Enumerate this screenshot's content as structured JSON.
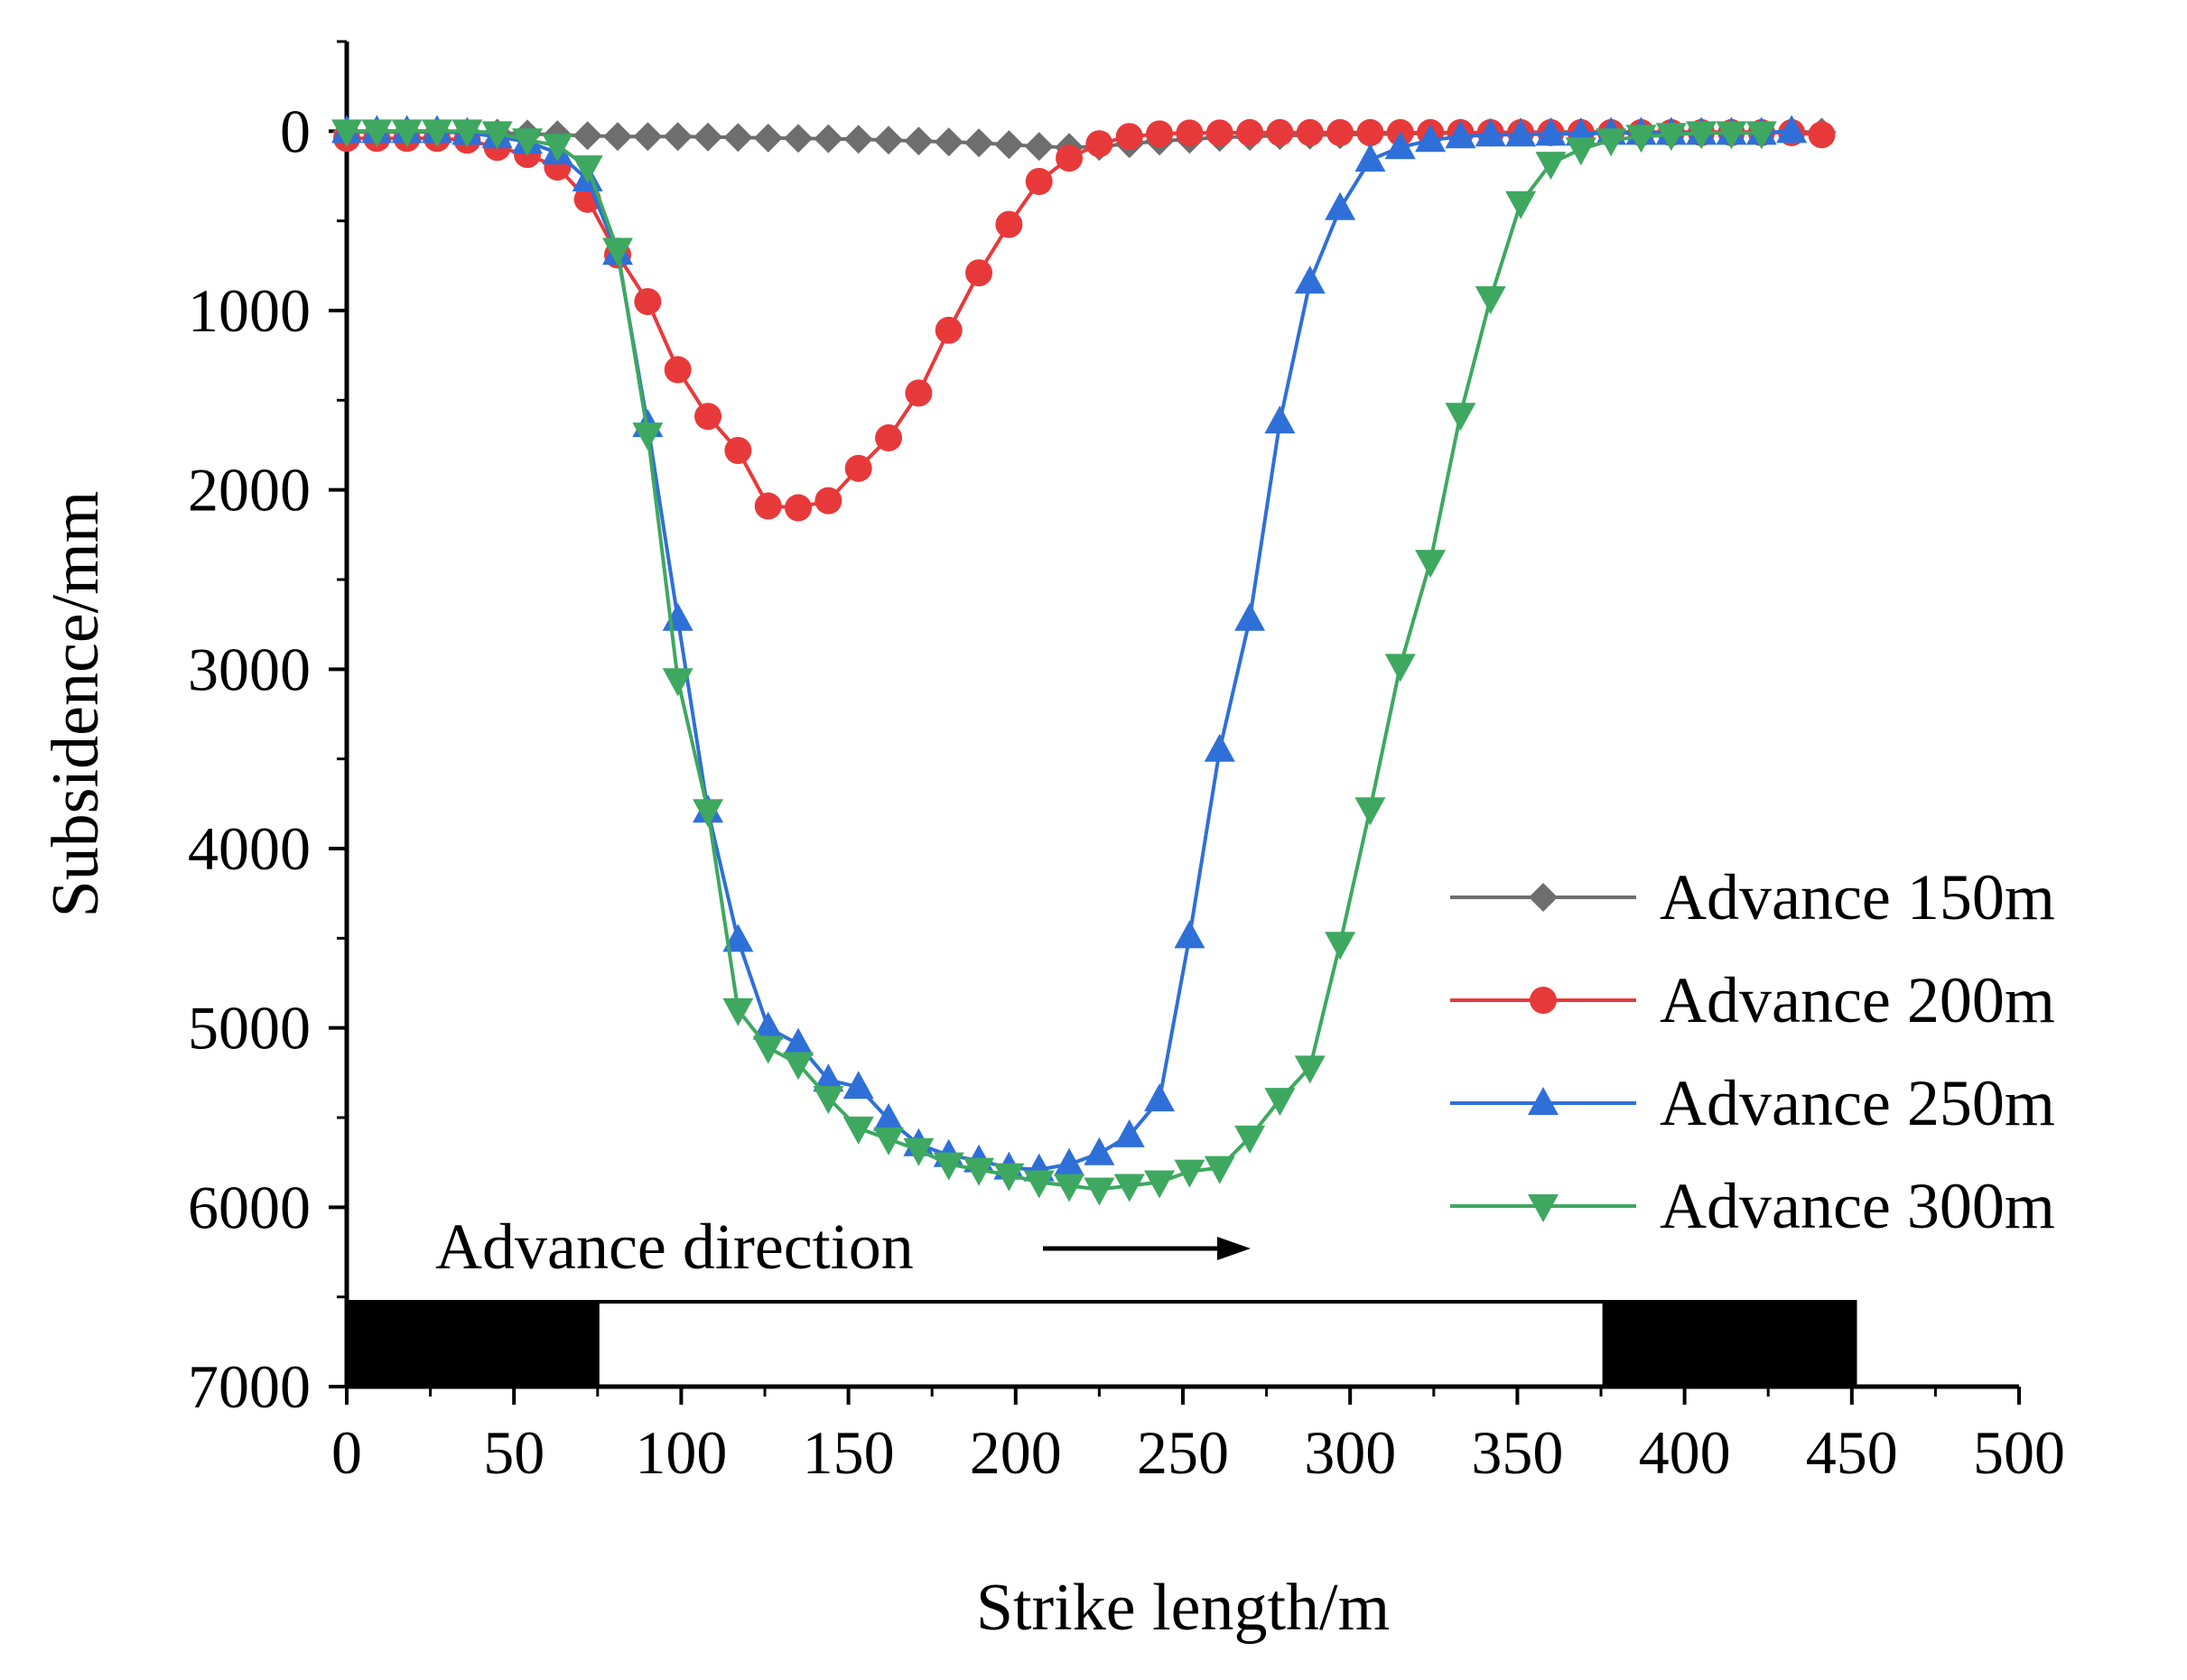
{
  "chart_data": {
    "type": "line",
    "xlabel": "Strike length/m",
    "ylabel": "Subsidence/mm",
    "xlim": [
      0,
      500
    ],
    "ylim": [
      7000,
      -500
    ],
    "y_inverted": true,
    "xticks": [
      "0",
      "50",
      "100",
      "150",
      "200",
      "250",
      "300",
      "350",
      "400",
      "450",
      "500"
    ],
    "yticks": [
      "0",
      "1000",
      "2000",
      "3000",
      "4000",
      "5000",
      "6000",
      "7000"
    ],
    "legend_position": "bottom-right",
    "annotation": {
      "text": "Advance direction",
      "arrow": "right"
    },
    "coal_pillars": [
      {
        "label": "",
        "x_start": 0,
        "x_end": 75,
        "fill": "#000000"
      },
      {
        "label": "",
        "x_start": 75,
        "x_end": 376,
        "fill": "#ffffff"
      },
      {
        "label": "",
        "x_start": 376,
        "x_end": 451,
        "fill": "#000000"
      }
    ],
    "series": [
      {
        "name": "Advance 150m",
        "color": "#6e6e6e",
        "marker": "diamond",
        "x": [
          0,
          9,
          18,
          27,
          36,
          45,
          54,
          63,
          72,
          81,
          90,
          99,
          108,
          117,
          126,
          135,
          144,
          153,
          162,
          171,
          180,
          189,
          198,
          207,
          216,
          225,
          234,
          243,
          252,
          261,
          270,
          279,
          288,
          297,
          306,
          315,
          324,
          333,
          342,
          351,
          360,
          369,
          378,
          387,
          396,
          405,
          414,
          423,
          432,
          441
        ],
        "y": [
          5,
          5,
          5,
          5,
          8,
          10,
          15,
          20,
          25,
          30,
          30,
          30,
          32,
          35,
          38,
          40,
          42,
          45,
          50,
          55,
          60,
          65,
          75,
          85,
          90,
          85,
          70,
          55,
          45,
          35,
          30,
          25,
          22,
          20,
          18,
          15,
          12,
          10,
          8,
          6,
          5,
          5,
          5,
          5,
          5,
          5,
          5,
          5,
          5,
          5
        ]
      },
      {
        "name": "Advance 200m",
        "color": "#e8393a",
        "marker": "circle",
        "x": [
          0,
          9,
          18,
          27,
          36,
          45,
          54,
          63,
          72,
          81,
          90,
          99,
          108,
          117,
          126,
          135,
          144,
          153,
          162,
          171,
          180,
          189,
          198,
          207,
          216,
          225,
          234,
          243,
          252,
          261,
          270,
          279,
          288,
          297,
          306,
          315,
          324,
          333,
          342,
          351,
          360,
          369,
          378,
          387,
          396,
          405,
          414,
          423,
          432,
          441
        ],
        "y": [
          40,
          40,
          40,
          40,
          50,
          90,
          130,
          200,
          380,
          690,
          950,
          1330,
          1590,
          1780,
          2090,
          2100,
          2060,
          1880,
          1710,
          1460,
          1110,
          790,
          520,
          280,
          150,
          70,
          30,
          15,
          10,
          10,
          8,
          8,
          8,
          8,
          8,
          8,
          8,
          8,
          8,
          8,
          8,
          8,
          8,
          8,
          8,
          8,
          8,
          8,
          8,
          20
        ]
      },
      {
        "name": "Advance 250m",
        "color": "#2f6fd8",
        "marker": "triangle-up",
        "x": [
          0,
          9,
          18,
          27,
          36,
          45,
          54,
          63,
          72,
          81,
          90,
          99,
          108,
          117,
          126,
          135,
          144,
          153,
          162,
          171,
          180,
          189,
          198,
          207,
          216,
          225,
          234,
          243,
          252,
          261,
          270,
          279,
          288,
          297,
          306,
          315,
          324,
          333,
          342,
          351,
          360,
          369,
          378,
          387,
          396,
          405,
          414,
          423,
          432
        ],
        "y": [
          0,
          0,
          0,
          0,
          10,
          30,
          60,
          120,
          270,
          680,
          1640,
          2720,
          3790,
          4510,
          5000,
          5090,
          5290,
          5330,
          5510,
          5650,
          5710,
          5740,
          5780,
          5790,
          5760,
          5700,
          5600,
          5400,
          4490,
          3450,
          2720,
          1620,
          840,
          430,
          160,
          90,
          50,
          30,
          20,
          20,
          15,
          15,
          10,
          10,
          10,
          10,
          10,
          10,
          0
        ]
      },
      {
        "name": "Advance 300m",
        "color": "#3ea860",
        "marker": "triangle-down",
        "x": [
          0,
          9,
          18,
          27,
          36,
          45,
          54,
          63,
          72,
          81,
          90,
          99,
          108,
          117,
          126,
          135,
          144,
          153,
          162,
          171,
          180,
          189,
          198,
          207,
          216,
          225,
          234,
          243,
          252,
          261,
          270,
          279,
          288,
          297,
          306,
          315,
          324,
          333,
          342,
          351,
          360,
          369,
          378,
          387,
          396,
          405,
          414,
          423
        ],
        "y": [
          0,
          0,
          0,
          0,
          0,
          10,
          50,
          80,
          200,
          660,
          1690,
          3060,
          3790,
          4900,
          5110,
          5200,
          5390,
          5560,
          5620,
          5680,
          5760,
          5790,
          5820,
          5860,
          5880,
          5900,
          5880,
          5860,
          5800,
          5780,
          5610,
          5400,
          5220,
          4530,
          3780,
          2980,
          2400,
          1580,
          930,
          400,
          180,
          100,
          50,
          30,
          20,
          10,
          10,
          10
        ]
      }
    ]
  }
}
